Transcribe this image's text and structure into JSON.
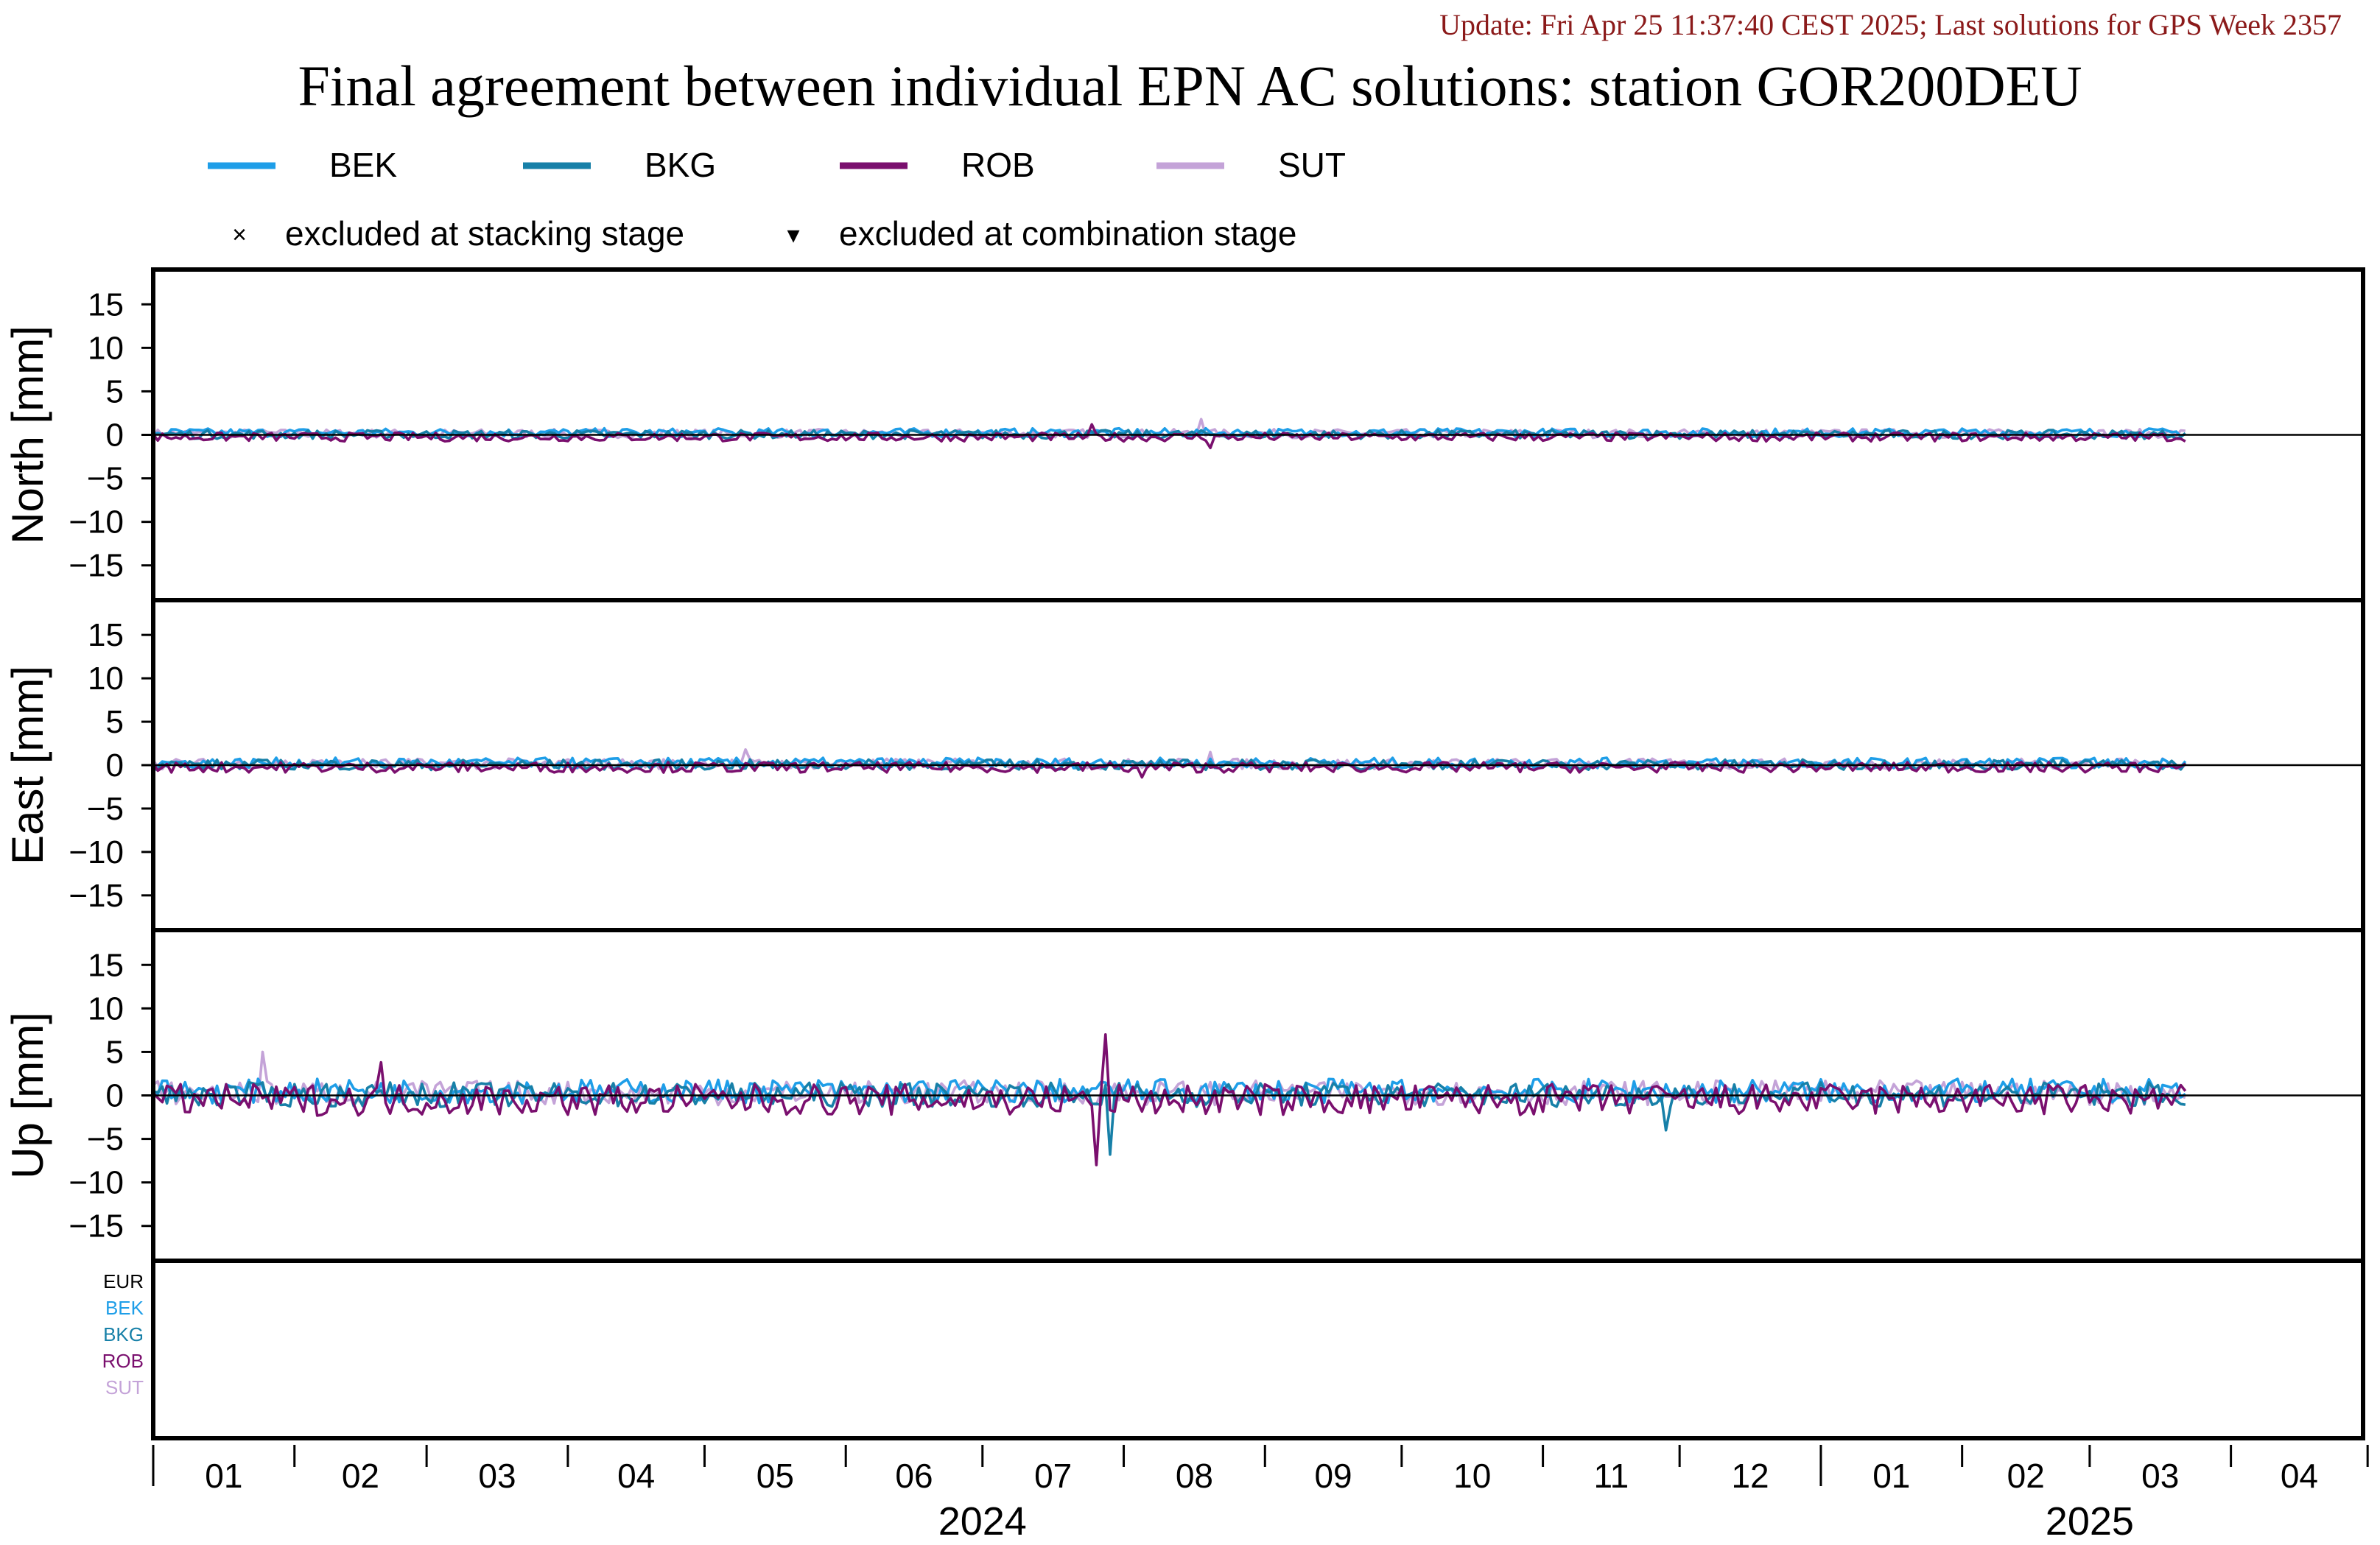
{
  "header": {
    "update_text": "Update: Fri Apr 25 11:37:40 CEST 2025; Last solutions for GPS Week 2357",
    "title": "Final agreement between individual EPN AC solutions: station GOR200DEU"
  },
  "legend": {
    "series": [
      {
        "name": "BEK",
        "color": "#1e9ee8"
      },
      {
        "name": "BKG",
        "color": "#1780a8"
      },
      {
        "name": "ROB",
        "color": "#7a0f6e"
      },
      {
        "name": "SUT",
        "color": "#c4a3d8"
      }
    ],
    "markers": [
      {
        "symbol": "×",
        "label": "excluded at stacking stage"
      },
      {
        "symbol": "▾",
        "label": "excluded at combination stage"
      }
    ]
  },
  "bottom_panel_labels": [
    {
      "text": "EUR",
      "color": "#000000"
    },
    {
      "text": "BEK",
      "color": "#1e9ee8"
    },
    {
      "text": "BKG",
      "color": "#1780a8"
    },
    {
      "text": "ROB",
      "color": "#7a0f6e"
    },
    {
      "text": "SUT",
      "color": "#c4a3d8"
    }
  ],
  "chart_data": {
    "type": "line",
    "x_range": [
      "2024-01-01",
      "2025-04-30"
    ],
    "data_end": "2025-03-22",
    "month_labels": [
      "01",
      "02",
      "03",
      "04",
      "05",
      "06",
      "07",
      "08",
      "09",
      "10",
      "11",
      "12",
      "01",
      "02",
      "03",
      "04"
    ],
    "year_labels": [
      {
        "text": "2024",
        "center": "2024-07-01"
      },
      {
        "text": "2025",
        "center": "2025-03-01"
      }
    ],
    "series_names": [
      "BEK",
      "BKG",
      "ROB",
      "SUT"
    ],
    "panels": [
      {
        "ylabel": "North [mm]",
        "ylim": [
          -19,
          19
        ],
        "yticks": [
          15,
          10,
          5,
          0,
          -5,
          -10,
          -15
        ],
        "approx_amplitude": 0.5,
        "spikes": [
          {
            "date": "2024-07-25",
            "series": "ROB",
            "value": 1.2
          },
          {
            "date": "2024-08-20",
            "series": "ROB",
            "value": -1.5
          },
          {
            "date": "2024-08-18",
            "series": "SUT",
            "value": 1.8
          }
        ]
      },
      {
        "ylabel": "East [mm]",
        "ylim": [
          -19,
          19
        ],
        "yticks": [
          15,
          10,
          5,
          0,
          -5,
          -10,
          -15
        ],
        "approx_amplitude": 0.6,
        "spikes": [
          {
            "date": "2024-05-10",
            "series": "SUT",
            "value": 1.8
          },
          {
            "date": "2024-08-05",
            "series": "ROB",
            "value": -1.4
          },
          {
            "date": "2024-08-20",
            "series": "SUT",
            "value": 1.5
          }
        ]
      },
      {
        "ylabel": "Up [mm]",
        "ylim": [
          -19,
          19
        ],
        "yticks": [
          15,
          10,
          5,
          0,
          -5,
          -10,
          -15
        ],
        "approx_amplitude": 1.4,
        "spikes": [
          {
            "date": "2024-07-28",
            "series": "ROB",
            "value": 7.0
          },
          {
            "date": "2024-07-26",
            "series": "ROB",
            "value": -8.0
          },
          {
            "date": "2024-07-29",
            "series": "BKG",
            "value": -6.8
          },
          {
            "date": "2024-02-20",
            "series": "ROB",
            "value": 3.8
          },
          {
            "date": "2024-01-25",
            "series": "SUT",
            "value": 5.0
          },
          {
            "date": "2024-11-28",
            "series": "BKG",
            "value": -4.0
          }
        ]
      }
    ],
    "bottom_panel": {
      "ylabel": ""
    },
    "grid": false,
    "zero_line": true
  }
}
